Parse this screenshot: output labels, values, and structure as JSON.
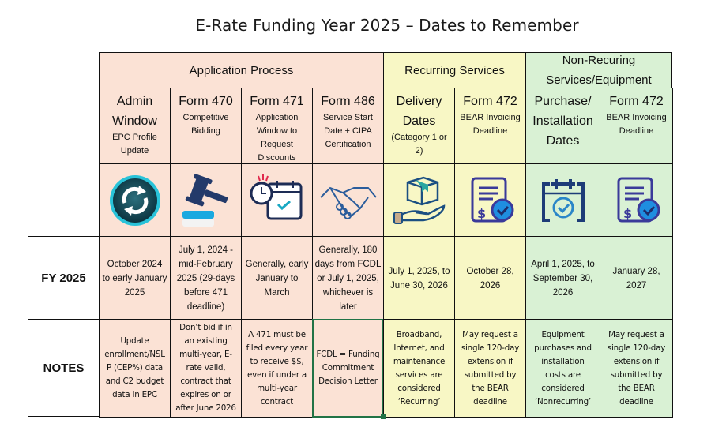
{
  "title": "E-Rate Funding Year 2025 – Dates to Remember",
  "groups": {
    "application": "Application Process",
    "recurring": "Recurring Services",
    "nonrecurring_line1": "Non-Recuring",
    "nonrecurring_line2": "Services/Equipment"
  },
  "columns": [
    {
      "title_lines": [
        "Admin",
        "Window"
      ],
      "subtitle_lines": [
        "EPC Profile",
        "Update"
      ],
      "icon": "refresh-circle-icon"
    },
    {
      "title_lines": [
        "Form 470"
      ],
      "subtitle_lines": [
        "Competitive",
        "Bidding"
      ],
      "icon": "gavel-icon"
    },
    {
      "title_lines": [
        "Form 471"
      ],
      "subtitle_lines": [
        "Application",
        "Window to",
        "Request",
        "Discounts"
      ],
      "icon": "calendar-clock-icon"
    },
    {
      "title_lines": [
        "Form 486"
      ],
      "subtitle_lines": [
        "Service Start",
        "Date + CIPA",
        "Certification"
      ],
      "icon": "handshake-icon"
    },
    {
      "title_lines": [
        "Delivery",
        "Dates"
      ],
      "subtitle_lines": [
        "(Category 1 or",
        "2)"
      ],
      "icon": "package-hand-icon"
    },
    {
      "title_lines": [
        "Form 472"
      ],
      "subtitle_lines": [
        "BEAR Invoicing",
        "Deadline"
      ],
      "icon": "invoice-check-icon"
    },
    {
      "title_lines": [
        "Purchase/",
        "Installation",
        "Dates"
      ],
      "subtitle_lines": [],
      "icon": "calendar-check-icon"
    },
    {
      "title_lines": [
        "Form 472"
      ],
      "subtitle_lines": [
        "BEAR Invoicing",
        "Deadline"
      ],
      "icon": "invoice-check-icon"
    }
  ],
  "rows": {
    "fy_label": "FY 2025",
    "notes_label": "NOTES",
    "fy": [
      [
        "October 2024",
        "to early January",
        "2025"
      ],
      [
        "July 1, 2024 -",
        "mid-February",
        "2025 (29-days",
        "before 471",
        "deadline)"
      ],
      [
        "Generally, early",
        "January to",
        "March"
      ],
      [
        "Generally, 180",
        "days from FCDL",
        "or July 1, 2025,",
        "whichever is",
        "later"
      ],
      [
        "July 1, 2025, to",
        "June 30, 2026"
      ],
      [
        "October 28,",
        "2026"
      ],
      [
        "April 1, 2025, to",
        "September 30,",
        "2026"
      ],
      [
        "January 28,",
        "2027"
      ]
    ],
    "notes": [
      [
        "Update",
        "enrollment/NSL",
        "P (CEP%) data",
        "and C2 budget",
        "data in EPC"
      ],
      [
        "Don’t bid if in",
        "an existing",
        "multi-year, E-",
        "rate valid,",
        "contract that",
        "expires on or",
        "after June 2026"
      ],
      [
        "A 471 must be",
        "filed every year",
        "to receive $$,",
        "even if under a",
        "multi-year",
        "contract"
      ],
      [
        "FCDL = Funding",
        "Commitment",
        "Decision Letter"
      ],
      [
        "Broadband,",
        "Internet, and",
        "maintenance",
        "services are",
        "considered",
        "‘Recurring’"
      ],
      [
        "May request a",
        "single 120-day",
        "extension if",
        "submitted by",
        "the BEAR",
        "deadline"
      ],
      [
        "Equipment",
        "purchases and",
        "installation",
        "costs are",
        "considered",
        "‘Nonrecurring’"
      ],
      [
        "May request a",
        "single 120-day",
        "extension if",
        "submitted by",
        "the BEAR",
        "deadline"
      ]
    ]
  },
  "colors": {
    "application_bg": "#fbe2d5",
    "recurring_bg": "#f8f7c5",
    "nonrecurring_bg": "#d9f1d4",
    "selection_border": "#217346"
  }
}
